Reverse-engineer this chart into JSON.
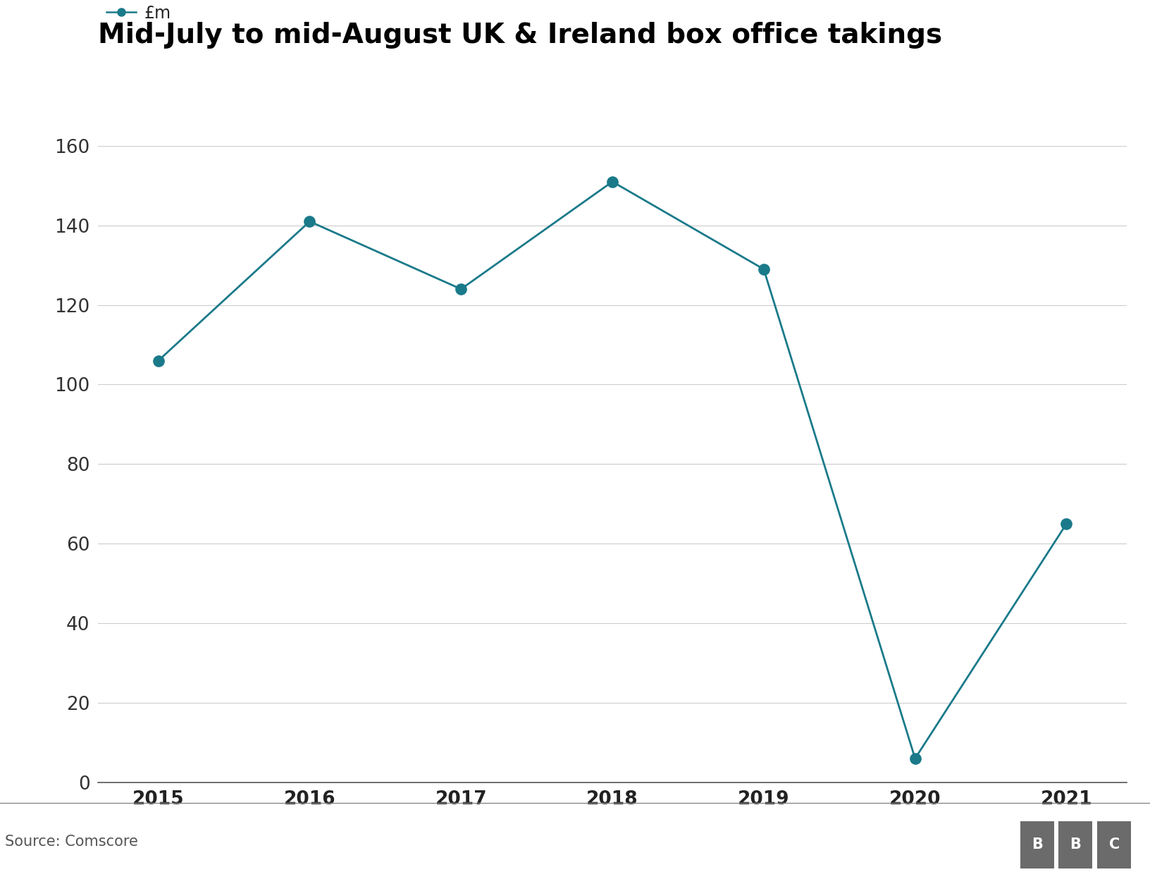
{
  "title": "Mid-July to mid-August UK & Ireland box office takings",
  "legend_label": "£m",
  "source": "Source: Comscore",
  "years": [
    2015,
    2016,
    2017,
    2018,
    2019,
    2020,
    2021
  ],
  "values": [
    106,
    141,
    124,
    151,
    129,
    6,
    65
  ],
  "line_color": "#1a7a8a",
  "marker_color": "#1a7a8a",
  "ylim": [
    0,
    160
  ],
  "yticks": [
    0,
    20,
    40,
    60,
    80,
    100,
    120,
    140,
    160
  ],
  "background_color": "#ffffff",
  "title_fontsize": 28,
  "legend_fontsize": 17,
  "tick_fontsize": 19,
  "source_fontsize": 15,
  "bbc_fontsize": 15,
  "line_width": 2.0,
  "marker_size": 11,
  "bbc_color": "#6b6b6b"
}
